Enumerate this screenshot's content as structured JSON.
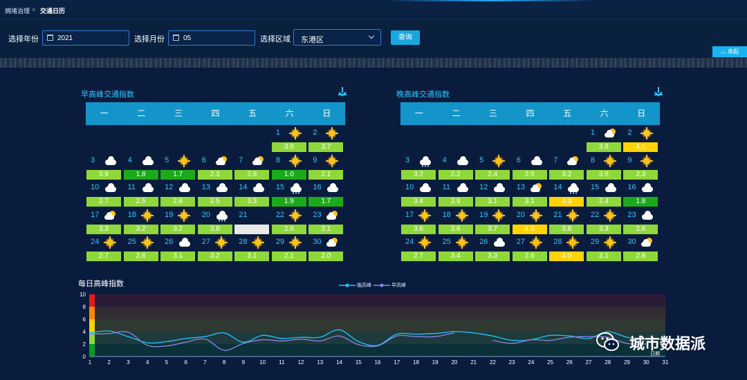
{
  "breadcrumb": {
    "parent": "拥堵治理",
    "separator": ">",
    "current": "交通日历"
  },
  "filters": {
    "year_label": "选择年份",
    "year_value": "2021",
    "month_label": "选择月份",
    "month_value": "05",
    "area_label": "选择区域",
    "area_value": "东港区",
    "query_button": "查询",
    "collapse_button": "收起"
  },
  "weekdays": [
    "一",
    "二",
    "三",
    "四",
    "五",
    "六",
    "日"
  ],
  "colors": {
    "green": "#8fd83a",
    "dark_green": "#1aaa1a",
    "yellow": "#ffd400",
    "empty": "#e8e8e8"
  },
  "morning": {
    "title": "早高峰交通指数",
    "days": [
      {
        "d": 1,
        "w": "sun",
        "v": "3.6",
        "c": "green"
      },
      {
        "d": 2,
        "w": "sun",
        "v": "3.7",
        "c": "green"
      },
      {
        "d": 3,
        "w": "cloud",
        "v": "3.9",
        "c": "green"
      },
      {
        "d": 4,
        "w": "cloud",
        "v": "1.8",
        "c": "dark_green"
      },
      {
        "d": 5,
        "w": "sun",
        "v": "1.7",
        "c": "dark_green"
      },
      {
        "d": 6,
        "w": "partly",
        "v": "2.3",
        "c": "green"
      },
      {
        "d": 7,
        "w": "partly",
        "v": "2.8",
        "c": "green"
      },
      {
        "d": 8,
        "w": "sun",
        "v": "1.0",
        "c": "dark_green"
      },
      {
        "d": 9,
        "w": "sun",
        "v": "2.1",
        "c": "green"
      },
      {
        "d": 10,
        "w": "cloud",
        "v": "2.7",
        "c": "green"
      },
      {
        "d": 11,
        "w": "cloud",
        "v": "2.5",
        "c": "green"
      },
      {
        "d": 12,
        "w": "cloud",
        "v": "2.8",
        "c": "green"
      },
      {
        "d": 13,
        "w": "cloud",
        "v": "2.5",
        "c": "green"
      },
      {
        "d": 14,
        "w": "cloud",
        "v": "3.3",
        "c": "green"
      },
      {
        "d": 15,
        "w": "rain",
        "v": "1.9",
        "c": "dark_green"
      },
      {
        "d": 16,
        "w": "cloud",
        "v": "1.7",
        "c": "dark_green"
      },
      {
        "d": 17,
        "w": "partly",
        "v": "3.3",
        "c": "green"
      },
      {
        "d": 18,
        "w": "sun",
        "v": "3.2",
        "c": "green"
      },
      {
        "d": 19,
        "w": "sun",
        "v": "3.2",
        "c": "green"
      },
      {
        "d": 20,
        "w": "rain",
        "v": "3.8",
        "c": "green"
      },
      {
        "d": 21,
        "w": "",
        "v": "",
        "c": "empty"
      },
      {
        "d": 22,
        "w": "sun",
        "v": "2.6",
        "c": "green"
      },
      {
        "d": 23,
        "w": "partly",
        "v": "2.1",
        "c": "green"
      },
      {
        "d": 24,
        "w": "sun",
        "v": "2.7",
        "c": "green"
      },
      {
        "d": 25,
        "w": "sun",
        "v": "2.6",
        "c": "green"
      },
      {
        "d": 26,
        "w": "cloud",
        "v": "3.1",
        "c": "green"
      },
      {
        "d": 27,
        "w": "sun",
        "v": "3.2",
        "c": "green"
      },
      {
        "d": 28,
        "w": "sun",
        "v": "3.1",
        "c": "green"
      },
      {
        "d": 29,
        "w": "sun",
        "v": "2.1",
        "c": "green"
      },
      {
        "d": 30,
        "w": "partly",
        "v": "2.0",
        "c": "green"
      }
    ]
  },
  "evening": {
    "title": "晚高峰交通指数",
    "days": [
      {
        "d": 1,
        "w": "partly",
        "v": "3.8",
        "c": "green"
      },
      {
        "d": 2,
        "w": "sun",
        "v": "4.1",
        "c": "yellow"
      },
      {
        "d": 3,
        "w": "rain",
        "v": "3.2",
        "c": "green"
      },
      {
        "d": 4,
        "w": "cloud",
        "v": "2.2",
        "c": "green"
      },
      {
        "d": 5,
        "w": "sun",
        "v": "2.4",
        "c": "green"
      },
      {
        "d": 6,
        "w": "cloud",
        "v": "2.9",
        "c": "green"
      },
      {
        "d": 7,
        "w": "partly",
        "v": "3.2",
        "c": "green"
      },
      {
        "d": 8,
        "w": "sun",
        "v": "3.8",
        "c": "green"
      },
      {
        "d": 9,
        "w": "sun",
        "v": "2.3",
        "c": "green"
      },
      {
        "d": 10,
        "w": "cloud",
        "v": "3.4",
        "c": "green"
      },
      {
        "d": 11,
        "w": "cloud",
        "v": "2.9",
        "c": "green"
      },
      {
        "d": 12,
        "w": "cloud",
        "v": "3.1",
        "c": "green"
      },
      {
        "d": 13,
        "w": "partly",
        "v": "3.1",
        "c": "green"
      },
      {
        "d": 14,
        "w": "rain",
        "v": "4.3",
        "c": "yellow"
      },
      {
        "d": 15,
        "w": "cloud",
        "v": "2.4",
        "c": "green"
      },
      {
        "d": 16,
        "w": "cloud",
        "v": "1.8",
        "c": "dark_green"
      },
      {
        "d": 17,
        "w": "sun",
        "v": "3.6",
        "c": "green"
      },
      {
        "d": 18,
        "w": "sun",
        "v": "3.6",
        "c": "green"
      },
      {
        "d": 19,
        "w": "sun",
        "v": "3.7",
        "c": "green"
      },
      {
        "d": 20,
        "w": "sun",
        "v": "4.0",
        "c": "yellow"
      },
      {
        "d": 21,
        "w": "sun",
        "v": "3.8",
        "c": "green"
      },
      {
        "d": 22,
        "w": "sun",
        "v": "3.3",
        "c": "green"
      },
      {
        "d": 23,
        "w": "cloud",
        "v": "2.6",
        "c": "green"
      },
      {
        "d": 24,
        "w": "sun",
        "v": "2.7",
        "c": "green"
      },
      {
        "d": 25,
        "w": "sun",
        "v": "3.4",
        "c": "green"
      },
      {
        "d": 26,
        "w": "cloud",
        "v": "3.3",
        "c": "green"
      },
      {
        "d": 27,
        "w": "sun",
        "v": "2.9",
        "c": "green"
      },
      {
        "d": 28,
        "w": "sun",
        "v": "4.0",
        "c": "yellow"
      },
      {
        "d": 29,
        "w": "sun",
        "v": "3.1",
        "c": "green"
      },
      {
        "d": 30,
        "w": "partly",
        "v": "2.8",
        "c": "green"
      }
    ]
  },
  "chart_data": {
    "type": "line",
    "title": "每日高峰指数",
    "xlabel": "日期",
    "ylabel": "",
    "ylim": [
      0,
      10
    ],
    "yticks": [
      0,
      2,
      4,
      6,
      8,
      10
    ],
    "x": [
      1,
      2,
      3,
      4,
      5,
      6,
      7,
      8,
      9,
      10,
      11,
      12,
      13,
      14,
      15,
      16,
      17,
      18,
      19,
      20,
      21,
      22,
      23,
      24,
      25,
      26,
      27,
      28,
      29,
      30,
      31
    ],
    "bands": [
      {
        "from": 0,
        "to": 2,
        "color": "#0a9b22"
      },
      {
        "from": 2,
        "to": 4,
        "color": "#8fd83a"
      },
      {
        "from": 4,
        "to": 6,
        "color": "#ffd400"
      },
      {
        "from": 6,
        "to": 8,
        "color": "#ff8a00"
      },
      {
        "from": 8,
        "to": 10,
        "color": "#e21a1a"
      }
    ],
    "series": [
      {
        "name": "晚高峰",
        "color": "#1fc8ff",
        "values": [
          3.8,
          4.1,
          3.2,
          2.2,
          2.4,
          2.9,
          3.2,
          3.8,
          2.3,
          3.4,
          2.9,
          3.1,
          3.1,
          4.3,
          2.4,
          1.8,
          3.6,
          3.6,
          3.7,
          4.0,
          3.8,
          3.3,
          2.6,
          2.7,
          3.4,
          3.3,
          2.9,
          4.0,
          3.1,
          2.8,
          null
        ]
      },
      {
        "name": "早高峰",
        "color": "#8a86e8",
        "values": [
          3.6,
          3.7,
          3.9,
          1.8,
          1.7,
          2.3,
          2.8,
          1.0,
          2.1,
          2.7,
          2.5,
          2.8,
          2.5,
          3.3,
          1.9,
          1.7,
          3.3,
          3.2,
          3.2,
          3.8,
          null,
          2.6,
          2.1,
          2.7,
          2.6,
          3.1,
          3.2,
          3.1,
          2.1,
          2.0,
          null
        ]
      }
    ],
    "legend_position": "top-center"
  },
  "watermark": {
    "text": "城市数据派"
  }
}
